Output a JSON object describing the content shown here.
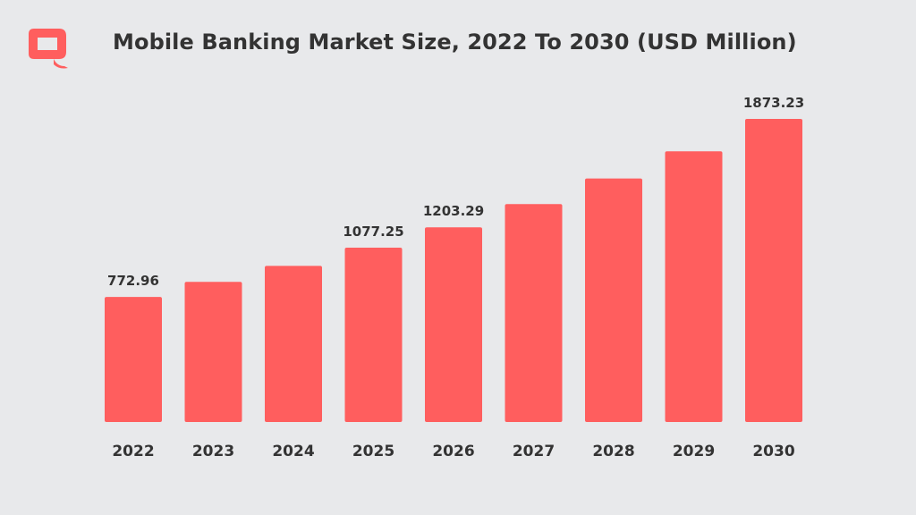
{
  "title": "Mobile Banking Market Size, 2022 To 2030 (USD Million)",
  "logo": {
    "icon": "q-logo-icon",
    "color": "#ff5e5e"
  },
  "colors": {
    "bar": "#ff5e5e",
    "background": "#e8e9eb",
    "text": "#333333"
  },
  "chart_data": {
    "type": "bar",
    "title": "Mobile Banking Market Size, 2022 To 2030 (USD Million)",
    "categories": [
      "2022",
      "2023",
      "2024",
      "2025",
      "2026",
      "2027",
      "2028",
      "2029",
      "2030"
    ],
    "values": [
      772.96,
      866.0,
      965.0,
      1077.25,
      1203.29,
      1347.0,
      1505.0,
      1673.0,
      1873.23
    ],
    "data_labels": [
      "772.96",
      "",
      "",
      "1077.25",
      "1203.29",
      "",
      "",
      "",
      "1873.23"
    ],
    "xlabel": "",
    "ylabel": "",
    "ylim": [
      0,
      1873.23
    ],
    "grid": false,
    "legend": "none"
  }
}
